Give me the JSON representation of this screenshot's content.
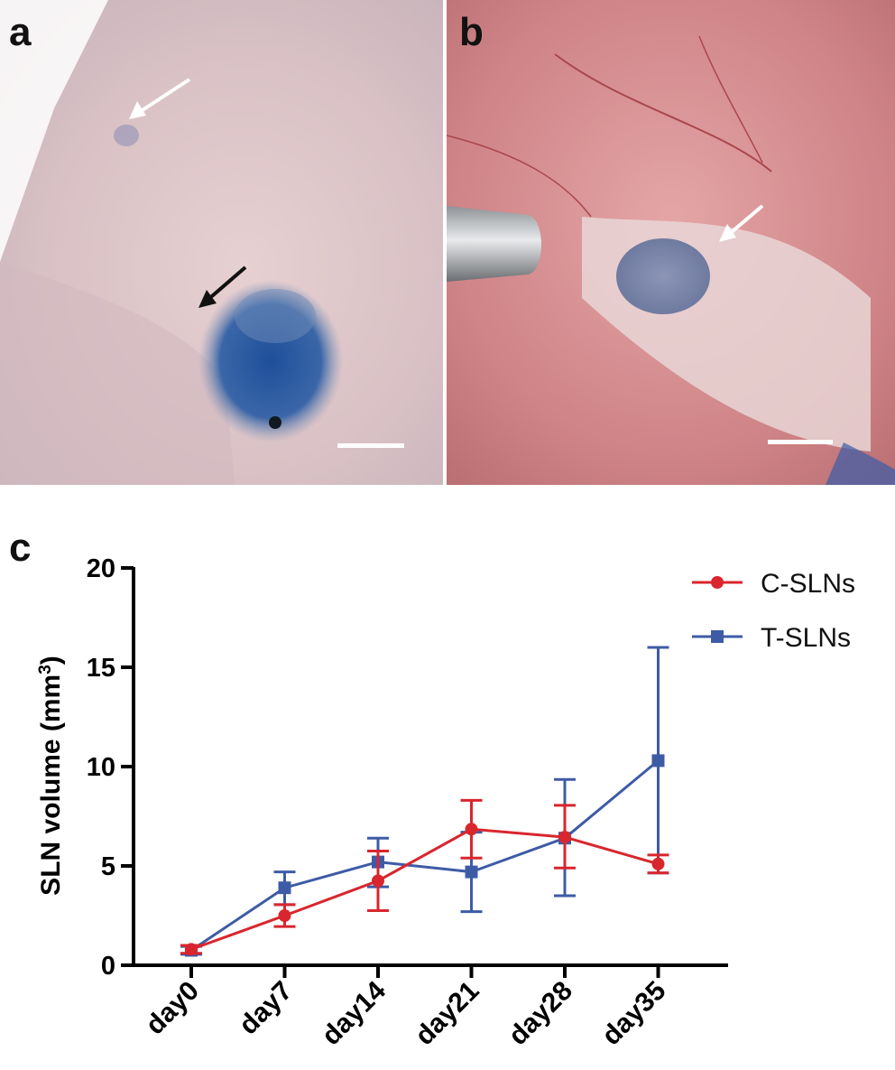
{
  "panels": {
    "a": {
      "letter": "a"
    },
    "b": {
      "letter": "b"
    },
    "c": {
      "letter": "c"
    }
  },
  "colors": {
    "c_slns": "#d9262e",
    "t_slns": "#3e5ba6",
    "axis": "#000000",
    "skin": "#d9c5c8",
    "dye_blue": "#2f5a9a",
    "tissue": "#c98a8e"
  },
  "chart_data": {
    "type": "line",
    "categories": [
      "day0",
      "day7",
      "day14",
      "day21",
      "day28",
      "day35"
    ],
    "ylabel": "SLN volume (mm",
    "ylabel_sup": "3",
    "ylabel_close": ")",
    "ylim": [
      0,
      20
    ],
    "yticks": [
      0,
      5,
      10,
      15,
      20
    ],
    "grid": false,
    "legend_position": "top-right",
    "series": [
      {
        "name": "C-SLNs",
        "color": "#d9262e",
        "marker": "circle",
        "values": [
          0.8,
          2.5,
          4.25,
          6.85,
          6.45,
          5.1
        ],
        "err_low": [
          0.6,
          1.95,
          2.75,
          5.4,
          4.9,
          4.65
        ],
        "err_high": [
          1.0,
          3.05,
          5.75,
          8.3,
          8.05,
          5.55
        ]
      },
      {
        "name": "T-SLNs",
        "color": "#3e5ba6",
        "marker": "square",
        "values": [
          0.75,
          3.9,
          5.2,
          4.7,
          6.4,
          10.3
        ],
        "err_low": [
          0.55,
          3.05,
          3.95,
          2.7,
          3.5,
          4.65
        ],
        "err_high": [
          0.95,
          4.7,
          6.4,
          6.7,
          9.35,
          16.0
        ]
      }
    ]
  }
}
